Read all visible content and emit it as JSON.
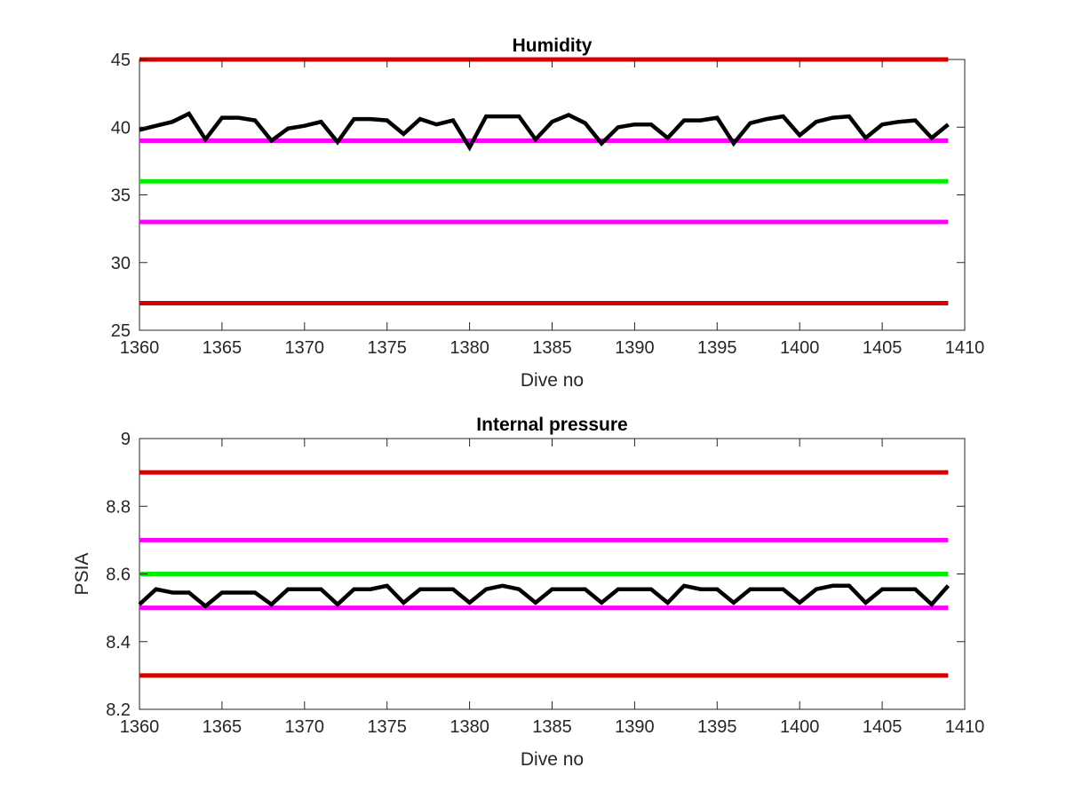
{
  "chart_data": [
    {
      "type": "line",
      "title": "Humidity",
      "xlabel": "Dive no",
      "ylabel": "",
      "xlim": [
        1360,
        1410
      ],
      "ylim": [
        25,
        45
      ],
      "xticks": [
        1360,
        1365,
        1370,
        1375,
        1380,
        1385,
        1390,
        1395,
        1400,
        1405,
        1410
      ],
      "yticks": [
        25,
        30,
        35,
        40,
        45
      ],
      "ytick_labels": [
        "25",
        "30",
        "35",
        "40",
        "45"
      ],
      "grid": false,
      "hlines": [
        {
          "y": 45,
          "color": "#d40000"
        },
        {
          "y": 39,
          "color": "#ff00ff"
        },
        {
          "y": 36,
          "color": "#00ee00"
        },
        {
          "y": 33,
          "color": "#ff00ff"
        },
        {
          "y": 27,
          "color": "#d40000"
        }
      ],
      "series": [
        {
          "color": "#000000",
          "x": [
            1360,
            1361,
            1362,
            1363,
            1364,
            1365,
            1366,
            1367,
            1368,
            1369,
            1370,
            1371,
            1372,
            1373,
            1374,
            1375,
            1376,
            1377,
            1378,
            1379,
            1380,
            1381,
            1382,
            1383,
            1384,
            1385,
            1386,
            1387,
            1388,
            1389,
            1390,
            1391,
            1392,
            1393,
            1394,
            1395,
            1396,
            1397,
            1398,
            1399,
            1400,
            1401,
            1402,
            1403,
            1404,
            1405,
            1406,
            1407,
            1408,
            1409
          ],
          "y": [
            39.8,
            40.1,
            40.4,
            41.0,
            39.1,
            40.7,
            40.7,
            40.5,
            39.0,
            39.9,
            40.1,
            40.4,
            38.9,
            40.6,
            40.6,
            40.5,
            39.5,
            40.6,
            40.2,
            40.5,
            38.5,
            40.8,
            40.8,
            40.8,
            39.1,
            40.4,
            40.9,
            40.3,
            38.8,
            40.0,
            40.2,
            40.2,
            39.2,
            40.5,
            40.5,
            40.7,
            38.8,
            40.3,
            40.6,
            40.8,
            39.4,
            40.4,
            40.7,
            40.8,
            39.2,
            40.2,
            40.4,
            40.5,
            39.2,
            40.2
          ]
        }
      ]
    },
    {
      "type": "line",
      "title": "Internal pressure",
      "xlabel": "Dive no",
      "ylabel": "PSIA",
      "xlim": [
        1360,
        1410
      ],
      "ylim": [
        8.2,
        9
      ],
      "xticks": [
        1360,
        1365,
        1370,
        1375,
        1380,
        1385,
        1390,
        1395,
        1400,
        1405,
        1410
      ],
      "yticks": [
        8.2,
        8.4,
        8.6,
        8.8,
        9
      ],
      "ytick_labels": [
        "8.2",
        "8.4",
        "8.6",
        "8.8",
        "9"
      ],
      "grid": false,
      "hlines": [
        {
          "y": 8.9,
          "color": "#d40000"
        },
        {
          "y": 8.7,
          "color": "#ff00ff"
        },
        {
          "y": 8.6,
          "color": "#00ee00"
        },
        {
          "y": 8.5,
          "color": "#ff00ff"
        },
        {
          "y": 8.3,
          "color": "#d40000"
        }
      ],
      "series": [
        {
          "color": "#000000",
          "x": [
            1360,
            1361,
            1362,
            1363,
            1364,
            1365,
            1366,
            1367,
            1368,
            1369,
            1370,
            1371,
            1372,
            1373,
            1374,
            1375,
            1376,
            1377,
            1378,
            1379,
            1380,
            1381,
            1382,
            1383,
            1384,
            1385,
            1386,
            1387,
            1388,
            1389,
            1390,
            1391,
            1392,
            1393,
            1394,
            1395,
            1396,
            1397,
            1398,
            1399,
            1400,
            1401,
            1402,
            1403,
            1404,
            1405,
            1406,
            1407,
            1408,
            1409
          ],
          "y": [
            8.51,
            8.555,
            8.545,
            8.545,
            8.505,
            8.545,
            8.545,
            8.545,
            8.51,
            8.555,
            8.555,
            8.555,
            8.51,
            8.555,
            8.555,
            8.565,
            8.515,
            8.555,
            8.555,
            8.555,
            8.515,
            8.555,
            8.565,
            8.555,
            8.515,
            8.555,
            8.555,
            8.555,
            8.515,
            8.555,
            8.555,
            8.555,
            8.515,
            8.565,
            8.555,
            8.555,
            8.515,
            8.555,
            8.555,
            8.555,
            8.515,
            8.555,
            8.565,
            8.565,
            8.515,
            8.555,
            8.555,
            8.555,
            8.51,
            8.565
          ]
        }
      ]
    }
  ]
}
